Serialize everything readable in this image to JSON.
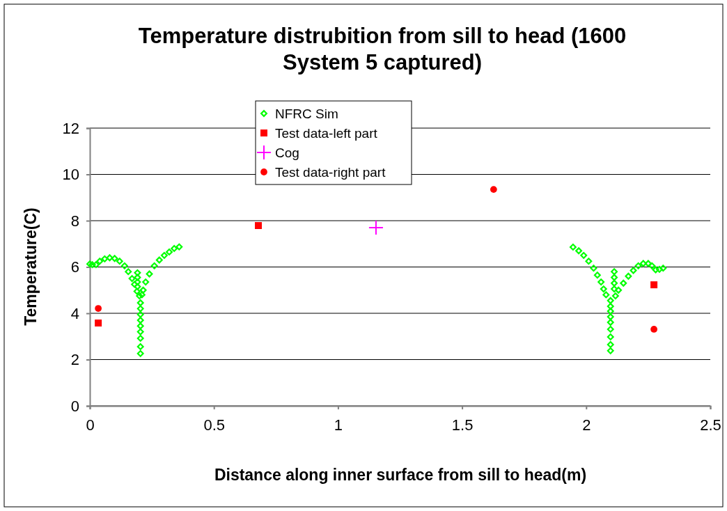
{
  "chart_data": {
    "type": "scatter",
    "title": "Temperature distrubition from sill to head (1600 System 5 captured)",
    "xlabel": "Distance along inner surface from sill to head(m)",
    "ylabel": "Temperature(C)",
    "xlim": [
      0,
      2.5
    ],
    "xticks": [
      0,
      0.5,
      1,
      1.5,
      2,
      2.5
    ],
    "ylim": [
      0,
      12
    ],
    "yticks": [
      0,
      2,
      4,
      6,
      8,
      10,
      12
    ],
    "grid": "y",
    "legend": "top",
    "series": [
      {
        "name": "NFRC Sim",
        "color": "#00ff00",
        "marker": "diamond",
        "x": [
          0,
          0.01,
          0.025,
          0.04,
          0.06,
          0.08,
          0.1,
          0.12,
          0.14,
          0.155,
          0.17,
          0.18,
          0.19,
          0.2,
          0.192,
          0.192,
          0.192,
          0.192,
          0.204,
          0.204,
          0.204,
          0.204,
          0.204,
          0.204,
          0.204,
          0.204,
          0.204,
          0.21,
          0.215,
          0.225,
          0.24,
          0.26,
          0.28,
          0.3,
          0.32,
          0.34,
          0.36,
          1.947,
          1.97,
          1.99,
          2.01,
          2.03,
          2.045,
          2.06,
          2.07,
          2.08,
          2.098,
          2.098,
          2.098,
          2.098,
          2.098,
          2.098,
          2.098,
          2.098,
          2.098,
          2.113,
          2.113,
          2.113,
          2.113,
          2.118,
          2.13,
          2.15,
          2.17,
          2.19,
          2.21,
          2.23,
          2.25,
          2.265,
          2.28,
          2.295,
          2.31
        ],
        "values": [
          6.13,
          6.1,
          6.1,
          6.25,
          6.35,
          6.4,
          6.37,
          6.25,
          6.05,
          5.8,
          5.5,
          5.25,
          4.95,
          4.75,
          5.75,
          5.55,
          5.35,
          5.15,
          4.45,
          4.2,
          3.95,
          3.7,
          3.45,
          3.2,
          2.92,
          2.56,
          2.26,
          4.8,
          5.0,
          5.35,
          5.7,
          6.05,
          6.3,
          6.5,
          6.65,
          6.8,
          6.87,
          6.86,
          6.7,
          6.5,
          6.25,
          5.95,
          5.65,
          5.35,
          5.05,
          4.8,
          4.55,
          4.3,
          4.09,
          3.85,
          3.61,
          3.31,
          2.98,
          2.65,
          2.38,
          5.8,
          5.55,
          5.3,
          5.05,
          4.75,
          5.0,
          5.3,
          5.6,
          5.85,
          6.05,
          6.15,
          6.15,
          6.05,
          5.88,
          5.9,
          5.95
        ]
      },
      {
        "name": "Test data-left part",
        "color": "#ff0000",
        "marker": "square",
        "x": [
          0.034,
          0.679,
          2.273
        ],
        "values": [
          3.58,
          7.79,
          5.23
        ]
      },
      {
        "name": "Cog",
        "color": "#ff00ff",
        "marker": "cross",
        "x": [
          1.153
        ],
        "values": [
          7.7
        ]
      },
      {
        "name": "Test data-right part",
        "color": "#ff0000",
        "marker": "circle",
        "x": [
          0.034,
          1.627,
          2.273
        ],
        "values": [
          4.21,
          9.35,
          3.31
        ]
      }
    ]
  }
}
